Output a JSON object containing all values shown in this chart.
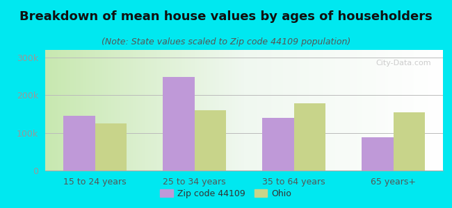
{
  "title": "Breakdown of mean house values by ages of householders",
  "subtitle": "(Note: State values scaled to Zip code 44109 population)",
  "categories": [
    "15 to 24 years",
    "25 to 34 years",
    "35 to 64 years",
    "65 years+"
  ],
  "zip_values": [
    145000,
    248000,
    140000,
    88000
  ],
  "ohio_values": [
    125000,
    160000,
    178000,
    155000
  ],
  "zip_color": "#bf99d8",
  "ohio_color": "#c8d48a",
  "background_outer": "#00e8f0",
  "ylim": [
    0,
    320000
  ],
  "yticks": [
    0,
    100000,
    200000,
    300000
  ],
  "ytick_labels": [
    "0",
    "100k",
    "200k",
    "300k"
  ],
  "legend_labels": [
    "Zip code 44109",
    "Ohio"
  ],
  "bar_width": 0.32,
  "title_fontsize": 13,
  "subtitle_fontsize": 9,
  "axis_fontsize": 9,
  "legend_fontsize": 9,
  "watermark": "City-Data.com"
}
